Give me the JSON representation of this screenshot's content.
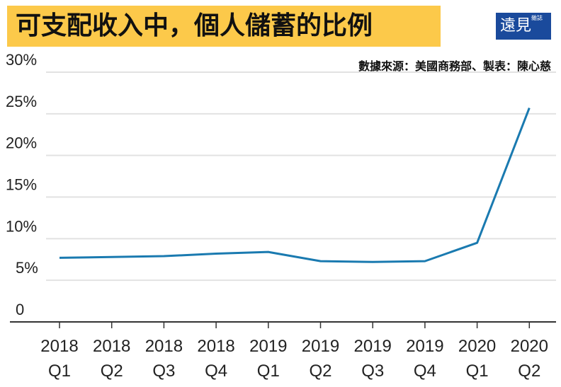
{
  "chart_data": {
    "type": "line",
    "title": "可支配收入中，個人儲蓄的比例",
    "source": "數據來源：美國商務部、製表：陳心慈",
    "logo_text": "遠見雜誌",
    "categories": [
      [
        "2018",
        "Q1"
      ],
      [
        "2018",
        "Q2"
      ],
      [
        "2018",
        "Q3"
      ],
      [
        "2018",
        "Q4"
      ],
      [
        "2019",
        "Q1"
      ],
      [
        "2019",
        "Q2"
      ],
      [
        "2019",
        "Q3"
      ],
      [
        "2019",
        "Q4"
      ],
      [
        "2020",
        "Q1"
      ],
      [
        "2020",
        "Q2"
      ]
    ],
    "series": [
      {
        "values": [
          7.7,
          7.8,
          7.9,
          8.2,
          8.4,
          7.3,
          7.2,
          7.3,
          9.5,
          25.7
        ],
        "color": "#1a7ab0"
      }
    ],
    "yticks": [
      "0",
      "5%",
      "10%",
      "15%",
      "20%",
      "25%",
      "30%"
    ],
    "ylim": [
      0,
      30
    ],
    "grid": true,
    "colors": {
      "banner": "#fcc94a",
      "logo": "#1a4a9c",
      "line": "#1a7ab0"
    }
  }
}
